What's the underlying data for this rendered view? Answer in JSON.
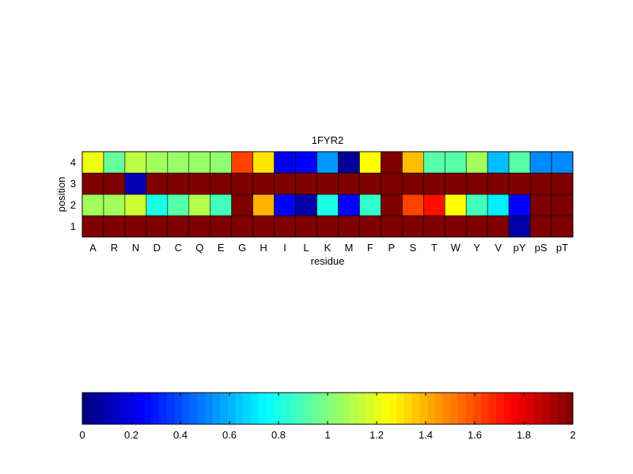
{
  "chart_data": {
    "type": "heatmap",
    "title": "1FYR2",
    "xlabel": "residue",
    "ylabel": "position",
    "x_categories": [
      "A",
      "R",
      "N",
      "D",
      "C",
      "Q",
      "E",
      "G",
      "H",
      "I",
      "L",
      "K",
      "M",
      "F",
      "P",
      "S",
      "T",
      "W",
      "Y",
      "V",
      "pY",
      "pS",
      "pT"
    ],
    "y_categories": [
      "1",
      "2",
      "3",
      "4"
    ],
    "rows": {
      "4": [
        1.22,
        0.95,
        1.12,
        1.07,
        1.05,
        1.05,
        1.03,
        1.62,
        1.3,
        0.22,
        0.25,
        0.55,
        0.05,
        1.25,
        2.0,
        1.38,
        0.92,
        0.92,
        1.07,
        0.62,
        0.92,
        0.52,
        0.52
      ],
      "3": [
        2.0,
        2.0,
        0.1,
        2.0,
        2.0,
        2.0,
        2.0,
        2.0,
        2.0,
        2.0,
        2.0,
        2.0,
        2.0,
        2.0,
        2.0,
        2.0,
        2.0,
        2.0,
        2.0,
        2.0,
        2.0,
        2.0,
        2.0
      ],
      "2": [
        1.07,
        1.07,
        1.15,
        0.8,
        0.92,
        1.1,
        0.88,
        2.0,
        1.4,
        0.25,
        0.08,
        0.8,
        0.25,
        0.85,
        2.0,
        1.62,
        1.72,
        1.25,
        0.88,
        0.72,
        0.25,
        2.0,
        2.0
      ],
      "1": [
        2.0,
        2.0,
        2.0,
        2.0,
        2.0,
        2.0,
        2.0,
        2.0,
        2.0,
        2.0,
        2.0,
        2.0,
        2.0,
        2.0,
        2.0,
        2.0,
        2.0,
        2.0,
        2.0,
        2.0,
        0.08,
        2.0,
        2.0
      ]
    },
    "colorbar": {
      "colormap": "jet",
      "range": [
        0,
        2
      ],
      "ticks": [
        0,
        0.2,
        0.4,
        0.6,
        0.8,
        1,
        1.2,
        1.4,
        1.6,
        1.8,
        2
      ],
      "tick_labels": [
        "0",
        "0.2",
        "0.4",
        "0.6",
        "0.8",
        "1",
        "1.2",
        "1.4",
        "1.6",
        "1.8",
        "2"
      ],
      "placement": "bottom"
    },
    "grid": false
  }
}
